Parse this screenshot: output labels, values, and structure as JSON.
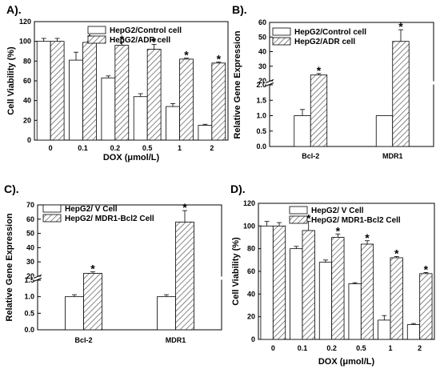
{
  "chart_data": [
    {
      "type": "bar",
      "panel_label": "A).",
      "title": "",
      "xlabel": "DOX (μmol/L)",
      "ylabel": "Cell Viability (%)",
      "ylim": [
        0,
        120
      ],
      "yticks": [
        "0",
        "20",
        "40",
        "60",
        "80",
        "100",
        "120"
      ],
      "categories": [
        "0",
        "0.1",
        "0.2",
        "0.5",
        "1",
        "2"
      ],
      "legend_position": "top-center",
      "series": [
        {
          "name": "HepG2/Control cell",
          "pattern": "open",
          "values": [
            100,
            81,
            63,
            44,
            34,
            15
          ],
          "errors": [
            3,
            8,
            2,
            3,
            3,
            1
          ]
        },
        {
          "name": "HepG2/ADR cell",
          "pattern": "hatched",
          "values": [
            100,
            99,
            96,
            92,
            82,
            78
          ],
          "errors": [
            3,
            1,
            3,
            5,
            1,
            1
          ]
        }
      ],
      "significance": [
        "",
        "*",
        "*",
        "*",
        "*",
        "*"
      ],
      "significance_series": "HepG2/ADR cell"
    },
    {
      "type": "bar",
      "panel_label": "B).",
      "title": "",
      "xlabel": "",
      "ylabel": "Relative Gene Expression",
      "broken_axis": true,
      "ylim_lower": [
        0,
        2
      ],
      "ylim_upper": [
        20,
        60
      ],
      "yticks_lower": [
        "0.0",
        "0.5",
        "1.0",
        "1.5",
        "2.0"
      ],
      "yticks_upper": [
        "20",
        "30",
        "40",
        "50",
        "60"
      ],
      "categories": [
        "Bcl-2",
        "MDR1"
      ],
      "legend_position": "top-left",
      "series": [
        {
          "name": "HepG2/Control cell",
          "pattern": "open",
          "values": [
            1.0,
            1.0
          ],
          "errors": [
            0.2,
            0
          ]
        },
        {
          "name": "HepG2/ADR cell",
          "pattern": "hatched",
          "values": [
            24,
            47
          ],
          "errors": [
            1,
            8
          ]
        }
      ],
      "significance": [
        "*",
        "*"
      ],
      "significance_series": "HepG2/ADR cell"
    },
    {
      "type": "bar",
      "panel_label": "C).",
      "title": "",
      "xlabel": "",
      "ylabel": "Relative Gene Expression",
      "broken_axis": true,
      "ylim_lower": [
        0,
        1.5
      ],
      "ylim_upper": [
        20,
        70
      ],
      "yticks_lower": [
        "0.0",
        "0.5",
        "1.0",
        "1.5"
      ],
      "yticks_upper": [
        "20",
        "30",
        "40",
        "50",
        "60",
        "70"
      ],
      "categories": [
        "Bcl-2",
        "MDR1"
      ],
      "legend_position": "top-left",
      "series": [
        {
          "name": "HepG2/ V Cell",
          "pattern": "open",
          "values": [
            1.0,
            1.0
          ],
          "errors": [
            0.06,
            0.06
          ]
        },
        {
          "name": "HepG2/ MDR1-Bcl2 Cell",
          "pattern": "hatched",
          "values": [
            22,
            58
          ],
          "errors": [
            1,
            8
          ]
        }
      ],
      "significance": [
        "*",
        "*"
      ],
      "significance_series": "HepG2/ MDR1-Bcl2 Cell"
    },
    {
      "type": "bar",
      "panel_label": "D).",
      "title": "",
      "xlabel": "DOX (μmol/L)",
      "ylabel": "Cell Viability (%)",
      "ylim": [
        0,
        120
      ],
      "yticks": [
        "0",
        "20",
        "40",
        "60",
        "80",
        "100",
        "120"
      ],
      "categories": [
        "0",
        "0.1",
        "0.2",
        "0.5",
        "1",
        "2"
      ],
      "legend_position": "top-right",
      "series": [
        {
          "name": "HepG2/ V Cell",
          "pattern": "open",
          "values": [
            100,
            80,
            68,
            49,
            17,
            13
          ],
          "errors": [
            4,
            2,
            2,
            1,
            4,
            1
          ]
        },
        {
          "name": "HepG2/ MDR1-Bcl2 Cell",
          "pattern": "hatched",
          "values": [
            100,
            96,
            90,
            84,
            72,
            58
          ],
          "errors": [
            3,
            8,
            3,
            3,
            1,
            1
          ]
        }
      ],
      "significance": [
        "",
        "*",
        "*",
        "*",
        "*",
        "*"
      ],
      "significance_series": "HepG2/ MDR1-Bcl2 Cell"
    }
  ]
}
